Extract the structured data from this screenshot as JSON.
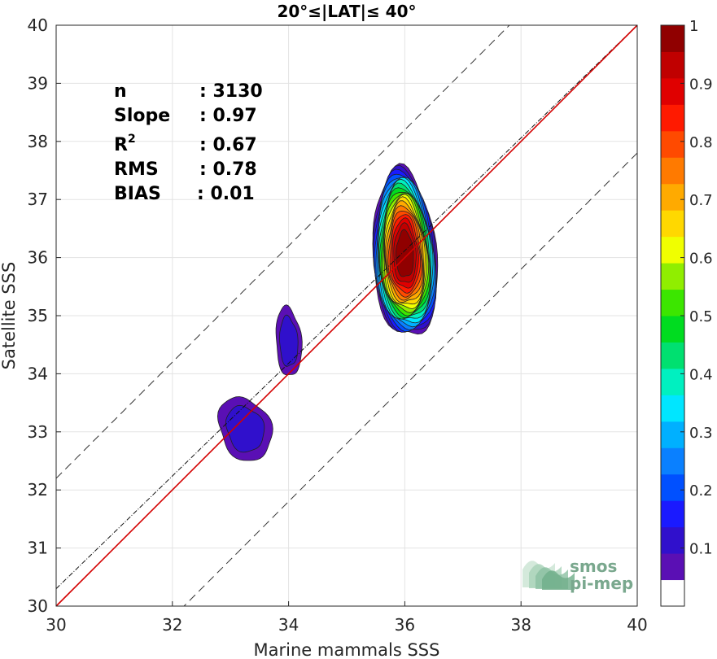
{
  "chart_data": {
    "type": "contour",
    "title": "20°≤|LAT|≤ 40°",
    "xlabel": "Marine mammals SSS",
    "ylabel": "Satellite SSS",
    "xlim": [
      30,
      40
    ],
    "ylim": [
      30,
      40
    ],
    "xticks": [
      "30",
      "32",
      "34",
      "36",
      "38",
      "40"
    ],
    "yticks": [
      "30",
      "31",
      "32",
      "33",
      "34",
      "35",
      "36",
      "37",
      "38",
      "39",
      "40"
    ],
    "grid": true,
    "stats": [
      {
        "label": "n",
        "value": ": 3130"
      },
      {
        "label": "Slope",
        "value": ": 0.97"
      },
      {
        "label": "R",
        "sup": "2",
        "value": ": 0.67"
      },
      {
        "label": "RMS",
        "value": ": 0.78"
      },
      {
        "label": "BIAS",
        "value": ": 0.01"
      }
    ],
    "reference_lines": {
      "identity_color": "#d40000",
      "fit": {
        "slope": 0.97,
        "intercept": 1.2
      },
      "dashed_offset": 2.2
    },
    "contour_clusters": [
      {
        "center": [
          36.0,
          36.05
        ],
        "sx": 0.55,
        "sy": 1.45,
        "peak": 1.0
      },
      {
        "center": [
          34.0,
          34.55
        ],
        "sx": 0.22,
        "sy": 0.6,
        "peak": 0.1
      },
      {
        "center": [
          33.25,
          33.05
        ],
        "sx": 0.45,
        "sy": 0.55,
        "peak": 0.1
      }
    ],
    "colorbar": {
      "range": [
        0,
        1
      ],
      "ticks": [
        "0.1",
        "0.2",
        "0.3",
        "0.4",
        "0.5",
        "0.6",
        "0.7",
        "0.8",
        "0.9",
        "1"
      ],
      "colors": [
        "#ffffff",
        "#5a0fb4",
        "#3010cc",
        "#1a1aff",
        "#0050ff",
        "#0a80ff",
        "#00b0ff",
        "#00e6ff",
        "#00f0c0",
        "#00e070",
        "#00dc20",
        "#3ce600",
        "#90ee00",
        "#f0ff00",
        "#ffd800",
        "#ffaa00",
        "#ff7a00",
        "#ff4a00",
        "#ff1a00",
        "#e00000",
        "#c00000",
        "#900000"
      ]
    },
    "logo": [
      "smos",
      "pi-mep"
    ]
  }
}
